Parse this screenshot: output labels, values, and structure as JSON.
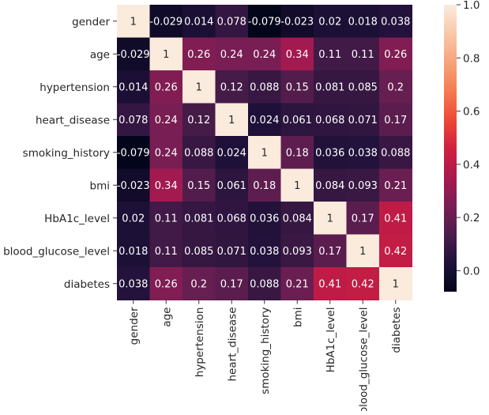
{
  "chart_data": {
    "type": "heatmap",
    "title": "",
    "xlabel": "",
    "ylabel": "",
    "labels": [
      "gender",
      "age",
      "hypertension",
      "heart_disease",
      "smoking_history",
      "bmi",
      "HbA1c_level",
      "blood_glucose_level",
      "diabetes"
    ],
    "matrix": [
      [
        1,
        -0.029,
        0.014,
        0.078,
        -0.079,
        -0.023,
        0.02,
        0.018,
        0.038
      ],
      [
        -0.029,
        1,
        0.26,
        0.24,
        0.24,
        0.34,
        0.11,
        0.11,
        0.26
      ],
      [
        0.014,
        0.26,
        1,
        0.12,
        0.088,
        0.15,
        0.081,
        0.085,
        0.2
      ],
      [
        0.078,
        0.24,
        0.12,
        1,
        0.024,
        0.061,
        0.068,
        0.071,
        0.17
      ],
      [
        -0.079,
        0.24,
        0.088,
        0.024,
        1,
        0.18,
        0.036,
        0.038,
        0.088
      ],
      [
        -0.023,
        0.34,
        0.15,
        0.061,
        0.18,
        1,
        0.084,
        0.093,
        0.21
      ],
      [
        0.02,
        0.11,
        0.081,
        0.068,
        0.036,
        0.084,
        1,
        0.17,
        0.41
      ],
      [
        0.018,
        0.11,
        0.085,
        0.071,
        0.038,
        0.093,
        0.17,
        1,
        0.42
      ],
      [
        0.038,
        0.26,
        0.2,
        0.17,
        0.088,
        0.21,
        0.41,
        0.42,
        1
      ]
    ],
    "annotations": [
      [
        "1",
        "-0.029",
        "0.014",
        "0.078",
        "-0.079",
        "-0.023",
        "0.02",
        "0.018",
        "0.038"
      ],
      [
        "-0.029",
        "1",
        "0.26",
        "0.24",
        "0.24",
        "0.34",
        "0.11",
        "0.11",
        "0.26"
      ],
      [
        "0.014",
        "0.26",
        "1",
        "0.12",
        "0.088",
        "0.15",
        "0.081",
        "0.085",
        "0.2"
      ],
      [
        "0.078",
        "0.24",
        "0.12",
        "1",
        "0.024",
        "0.061",
        "0.068",
        "0.071",
        "0.17"
      ],
      [
        "-0.079",
        "0.24",
        "0.088",
        "0.024",
        "1",
        "0.18",
        "0.036",
        "0.038",
        "0.088"
      ],
      [
        "-0.023",
        "0.34",
        "0.15",
        "0.061",
        "0.18",
        "1",
        "0.084",
        "0.093",
        "0.21"
      ],
      [
        "0.02",
        "0.11",
        "0.081",
        "0.068",
        "0.036",
        "0.084",
        "1",
        "0.17",
        "0.41"
      ],
      [
        "0.018",
        "0.11",
        "0.085",
        "0.071",
        "0.038",
        "0.093",
        "0.17",
        "1",
        "0.42"
      ],
      [
        "0.038",
        "0.26",
        "0.2",
        "0.17",
        "0.088",
        "0.21",
        "0.41",
        "0.42",
        "1"
      ]
    ],
    "colorbar": {
      "vmin": -0.079,
      "vmax": 1,
      "ticks": [
        0.0,
        0.2,
        0.4,
        0.6,
        0.8,
        1.0
      ],
      "tick_labels": [
        "0.0",
        "0.2",
        "0.4",
        "0.6",
        "0.8",
        "1.0"
      ],
      "colormap": "rocket",
      "stops": [
        "#03051a",
        "#1f1139",
        "#4c1d4b",
        "#7a1e54",
        "#a8194f",
        "#d11f3f",
        "#ed4a37",
        "#f47c50",
        "#f6a47c",
        "#f8c8a8",
        "#faebdd"
      ]
    },
    "grid": false,
    "legend": "colorbar-right"
  }
}
